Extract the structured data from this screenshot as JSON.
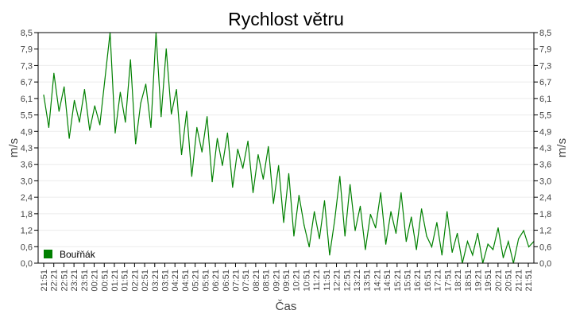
{
  "chart_data": {
    "type": "line",
    "title": "Rychlost větru",
    "xlabel": "Čas",
    "ylabel": "m/s",
    "ylabel_right": "m/s",
    "ylim": [
      0,
      8.5
    ],
    "grid": true,
    "legend_position": "bottom-left",
    "y_ticks": [
      "0,0",
      "0,6",
      "1,2",
      "1,8",
      "2,4",
      "3,0",
      "3,6",
      "4,3",
      "4,9",
      "5,5",
      "6,1",
      "6,7",
      "7,3",
      "7,9",
      "8,5"
    ],
    "x_ticks": [
      "21:51",
      "22:21",
      "22:51",
      "23:21",
      "23:51",
      "00:21",
      "00:51",
      "01:21",
      "01:51",
      "02:21",
      "02:51",
      "03:21",
      "03:51",
      "04:21",
      "04:51",
      "05:21",
      "05:51",
      "06:21",
      "06:51",
      "07:21",
      "07:51",
      "08:21",
      "08:51",
      "09:21",
      "09:51",
      "10:21",
      "10:51",
      "11:21",
      "11:51",
      "12:21",
      "12:51",
      "13:21",
      "13:51",
      "14:21",
      "14:51",
      "15:21",
      "15:51",
      "16:21",
      "16:51",
      "17:21",
      "17:51",
      "18:21",
      "18:51",
      "19:21",
      "19:51",
      "20:21",
      "20:51",
      "21:21",
      "21:51"
    ],
    "series": [
      {
        "name": "Bouřňák",
        "color": "#008000",
        "values": [
          6.2,
          5.0,
          7.0,
          5.6,
          6.5,
          4.6,
          6.0,
          5.2,
          6.4,
          4.9,
          5.8,
          5.1,
          6.8,
          8.5,
          4.8,
          6.3,
          5.2,
          7.5,
          4.4,
          5.9,
          6.6,
          5.0,
          8.5,
          5.4,
          7.9,
          5.5,
          6.4,
          4.0,
          5.6,
          3.2,
          5.0,
          4.1,
          5.4,
          3.0,
          4.6,
          3.6,
          4.8,
          2.8,
          4.2,
          3.5,
          4.5,
          2.6,
          4.0,
          3.1,
          4.3,
          2.2,
          3.6,
          1.5,
          3.3,
          1.0,
          2.5,
          1.4,
          0.6,
          1.9,
          0.9,
          2.3,
          0.3,
          1.6,
          3.2,
          1.0,
          2.9,
          1.2,
          2.1,
          0.5,
          1.8,
          1.3,
          2.6,
          0.7,
          1.9,
          1.1,
          2.6,
          0.8,
          1.7,
          0.5,
          2.0,
          1.0,
          0.6,
          1.5,
          0.3,
          1.9,
          0.4,
          1.1,
          0.0,
          0.8,
          0.3,
          1.1,
          0.0,
          0.7,
          0.5,
          1.3,
          0.2,
          0.8,
          0.0,
          0.9,
          1.2,
          0.6,
          0.8
        ]
      }
    ]
  }
}
